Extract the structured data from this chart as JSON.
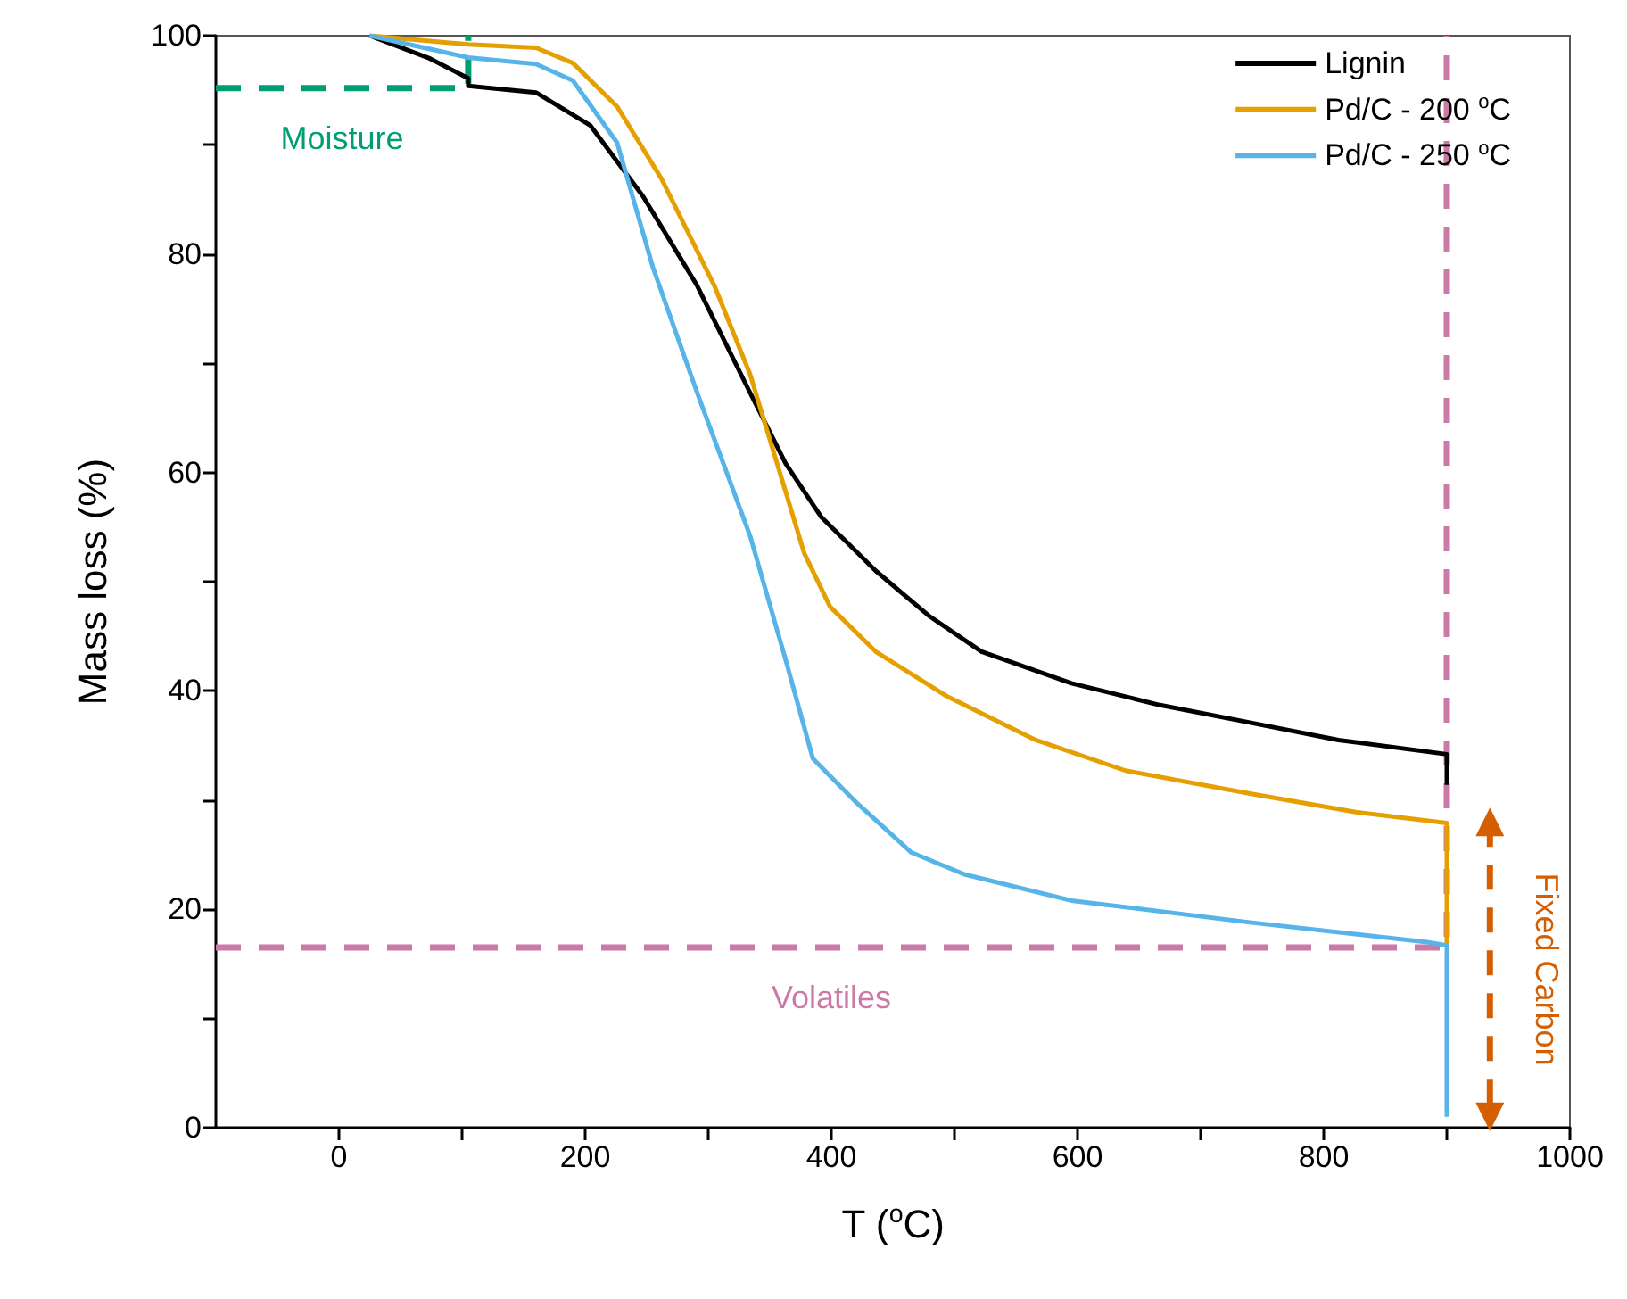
{
  "chart_data": {
    "type": "line",
    "xlabel": "T ($^{o}$C)",
    "ylabel": "Mass loss (%)",
    "xlim": [
      -100,
      1000
    ],
    "xticks": [
      0,
      200,
      400,
      600,
      800,
      1000,
      {
        "value": 100,
        "label": null
      },
      {
        "value": 300,
        "label": null
      },
      {
        "value": 500,
        "label": null
      },
      {
        "value": 700,
        "label": null
      },
      {
        "value": 900,
        "label": null
      }
    ],
    "ylim": [
      0,
      100
    ],
    "yticks": [
      0,
      20,
      40,
      60,
      80,
      100,
      {
        "value": 10,
        "label": null
      },
      {
        "value": 30,
        "label": null
      },
      {
        "value": 50,
        "label": null
      },
      {
        "value": 70,
        "label": null
      },
      {
        "value": 90,
        "label": null
      }
    ],
    "grid": false,
    "legend": "top right",
    "marker": "none",
    "line_style": "solid",
    "series": [
      {
        "name": "Lignin",
        "color": "#000000",
        "x": [
          25,
          74,
          105,
          105,
          160,
          204,
          247,
          291,
          334,
          363,
          392,
          436,
          479,
          522,
          595,
          667,
          740,
          812,
          900,
          900
        ],
        "values": [
          100,
          97.9,
          96.1,
          95.4,
          94.8,
          91.8,
          85.3,
          77.1,
          67.3,
          60.8,
          55.9,
          51,
          46.9,
          43.6,
          40.7,
          38.7,
          37.1,
          35.5,
          34.2,
          31.4
        ]
      },
      {
        "name": "Pd/C - 200 $^{o}$C",
        "color": "#e69f00",
        "x": [
          25,
          105,
          160,
          190,
          226,
          262,
          305,
          334,
          356,
          378,
          399,
          436,
          494,
          566,
          639,
          740,
          826,
          900,
          900
        ],
        "values": [
          100,
          99.2,
          98.9,
          97.5,
          93.5,
          86.9,
          77.1,
          69,
          60.8,
          52.6,
          47.7,
          43.6,
          39.5,
          35.5,
          32.7,
          30.6,
          28.9,
          27.9,
          16.5
        ]
      },
      {
        "name": "Pd/C - 250 $^{o}$C",
        "color": "#56b4e9",
        "x": [
          25,
          105,
          160,
          190,
          226,
          255,
          291,
          334,
          363,
          385,
          421,
          465,
          508,
          595,
          740,
          884,
          900,
          900
        ],
        "values": [
          100,
          98,
          97.4,
          95.9,
          90.2,
          78.8,
          67.3,
          54.2,
          42.8,
          33.8,
          29.7,
          25.2,
          23.2,
          20.8,
          18.8,
          17,
          16.7,
          1
        ]
      },
      {
        "color": "#009e73",
        "line_style": "dashed",
        "x": [
          -100,
          105,
          105
        ],
        "values": [
          95.2,
          95.2,
          100
        ]
      },
      {
        "color": "#cc79a7",
        "line_style": "dashed",
        "x": [
          -100,
          900,
          900
        ],
        "values": [
          16.5,
          16.5,
          100
        ]
      },
      {
        "color": "#d55e00",
        "line_style": "dashed",
        "marker": "triangle",
        "x": [
          935,
          935
        ],
        "values": [
          28,
          1
        ]
      }
    ],
    "annotations": [
      "Moisture",
      "Volatiles",
      "Fixed Carbon"
    ]
  }
}
